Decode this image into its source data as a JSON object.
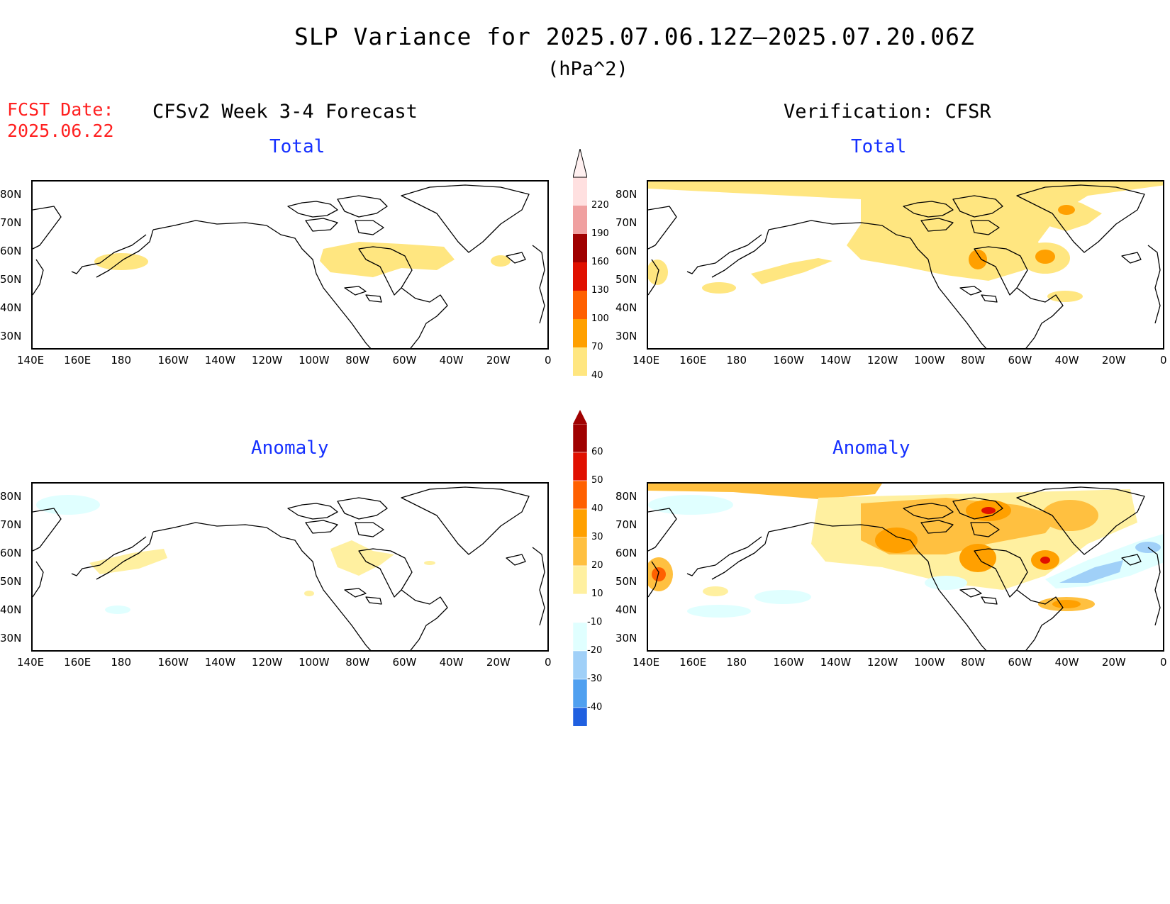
{
  "title": "SLP Variance for 2025.07.06.12Z–2025.07.20.06Z",
  "units": "(hPa^2)",
  "fcst_date_label": "FCST Date:",
  "fcst_date": "2025.06.22",
  "left_header": "CFSv2 Week 3-4 Forecast",
  "right_header": "Verification: CFSR",
  "panels": {
    "top_left": "Total",
    "top_right": "Total",
    "bottom_left": "Anomaly",
    "bottom_right": "Anomaly"
  },
  "lat_labels": [
    "80N",
    "70N",
    "60N",
    "50N",
    "40N",
    "30N"
  ],
  "lon_labels": [
    "140E",
    "160E",
    "180",
    "160W",
    "140W",
    "120W",
    "100W",
    "80W",
    "60W",
    "40W",
    "20W",
    "0"
  ],
  "total_colorbar": {
    "levels": [
      "40",
      "70",
      "100",
      "130",
      "160",
      "190",
      "220"
    ],
    "colors": [
      "#ffe680",
      "#ffa000",
      "#ff6000",
      "#e01000",
      "#a00000",
      "#f0a0a0",
      "#ffe0e0"
    ]
  },
  "anomaly_colorbar": {
    "levels": [
      "60",
      "50",
      "40",
      "30",
      "20",
      "10",
      "-10",
      "-20",
      "-30",
      "-40"
    ],
    "colors": [
      "#a00000",
      "#e01000",
      "#ff6000",
      "#ffa000",
      "#ffc040",
      "#fff0a0",
      "#ffffff",
      "#e0ffff",
      "#a0d0f8",
      "#50a0f0",
      "#2060e0"
    ]
  },
  "colors": {
    "title_red": "#ff2020",
    "subtitle_blue": "#1530ff"
  }
}
